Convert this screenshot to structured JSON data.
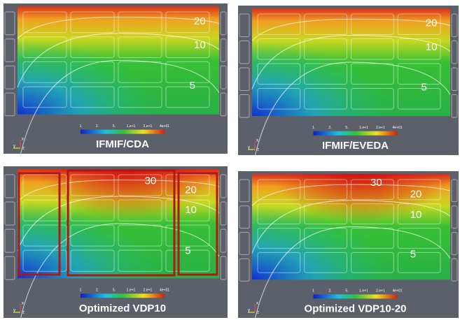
{
  "panels": [
    {
      "title": "IFMIF/CDA",
      "contour_labels": [
        "20",
        "10",
        "5"
      ]
    },
    {
      "title": "IFMIF/EVEDA",
      "contour_labels": [
        "20",
        "10",
        "5"
      ]
    },
    {
      "title": "Optimized VDP10",
      "contour_labels": [
        "30",
        "20",
        "10",
        "5"
      ]
    },
    {
      "title": "Optimized VDP10-20",
      "contour_labels": [
        "30",
        "20",
        "10",
        "5"
      ]
    }
  ],
  "colorbar_ticks": [
    "1",
    "2.",
    "5.",
    "1.e+1",
    "2.e+1",
    "4e+01"
  ],
  "axis_labels": [
    "x",
    "y",
    "z"
  ]
}
